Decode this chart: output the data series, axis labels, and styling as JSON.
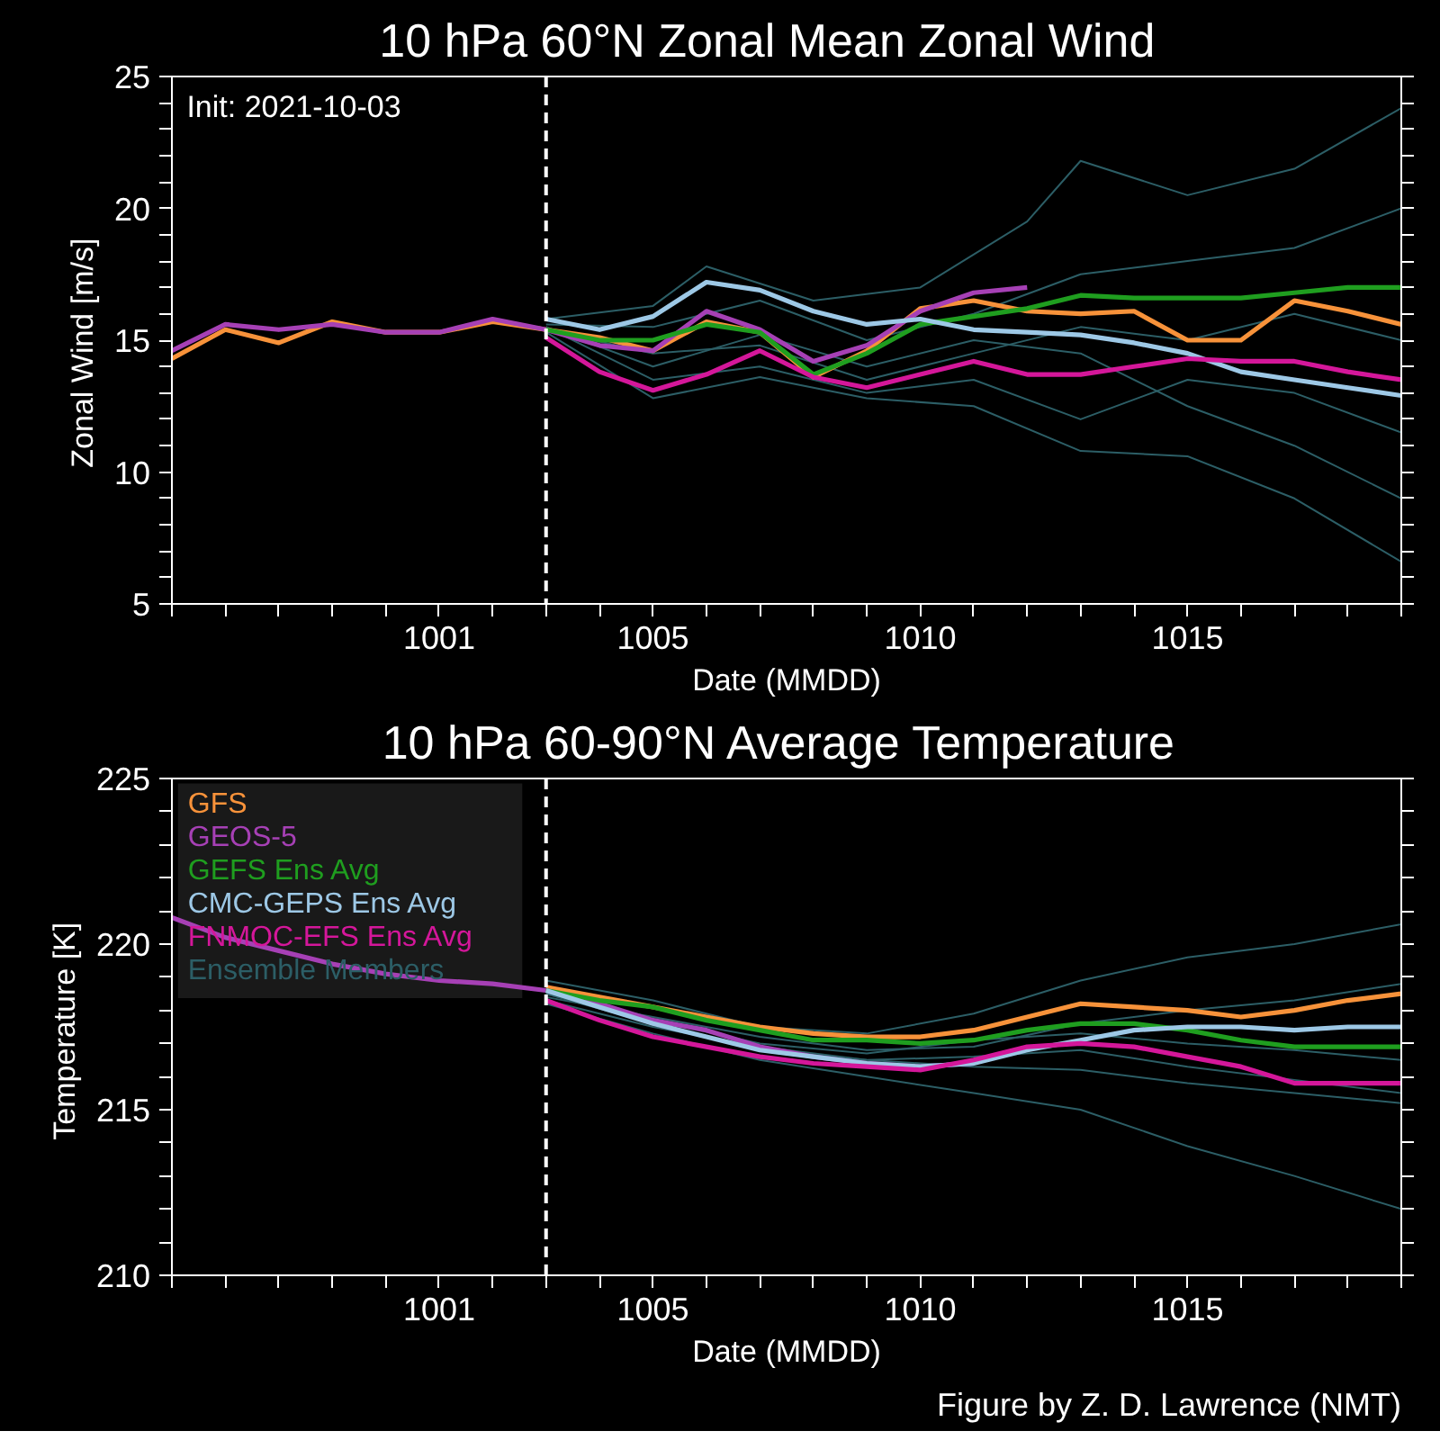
{
  "chart_data": [
    {
      "type": "line",
      "title": "10 hPa  60°N   Zonal Mean Zonal Wind",
      "xlabel": "Date (MMDD)",
      "ylabel": "Zonal  Wind   [m/s]",
      "annotations": [
        "Init: 2021-10-03"
      ],
      "xlim": [
        "2021-09-26",
        "2021-10-19"
      ],
      "xticks": [
        {
          "value": "2021-09-26",
          "label": null
        },
        {
          "value": "2021-09-27",
          "label": null
        },
        {
          "value": "2021-09-28",
          "label": null
        },
        {
          "value": "2021-09-29",
          "label": null
        },
        {
          "value": "2021-09-30",
          "label": null
        },
        {
          "value": "2021-10-01",
          "label": "1001"
        },
        {
          "value": "2021-10-02",
          "label": null
        },
        {
          "value": "2021-10-03",
          "label": null
        },
        {
          "value": "2021-10-04",
          "label": null
        },
        {
          "value": "2021-10-05",
          "label": "1005"
        },
        {
          "value": "2021-10-06",
          "label": null
        },
        {
          "value": "2021-10-07",
          "label": null
        },
        {
          "value": "2021-10-08",
          "label": null
        },
        {
          "value": "2021-10-09",
          "label": null
        },
        {
          "value": "2021-10-10",
          "label": "1010"
        },
        {
          "value": "2021-10-11",
          "label": null
        },
        {
          "value": "2021-10-12",
          "label": null
        },
        {
          "value": "2021-10-13",
          "label": null
        },
        {
          "value": "2021-10-14",
          "label": null
        },
        {
          "value": "2021-10-15",
          "label": "1015"
        },
        {
          "value": "2021-10-16",
          "label": null
        },
        {
          "value": "2021-10-17",
          "label": null
        },
        {
          "value": "2021-10-18",
          "label": null
        },
        {
          "value": "2021-10-19",
          "label": null
        }
      ],
      "ylim": [
        5,
        25
      ],
      "yticks": [
        5,
        {
          "value": 6,
          "label": null
        },
        {
          "value": 7,
          "label": null
        },
        {
          "value": 8,
          "label": null
        },
        {
          "value": 9,
          "label": null
        },
        10,
        {
          "value": 11,
          "label": null
        },
        {
          "value": 12,
          "label": null
        },
        {
          "value": 13,
          "label": null
        },
        {
          "value": 14,
          "label": null
        },
        15,
        {
          "value": 16,
          "label": null
        },
        {
          "value": 17,
          "label": null
        },
        {
          "value": 18,
          "label": null
        },
        {
          "value": 19,
          "label": null
        },
        20,
        {
          "value": 21,
          "label": null
        },
        {
          "value": 22,
          "label": null
        },
        {
          "value": 23,
          "label": null
        },
        {
          "value": 24,
          "label": null
        },
        25
      ],
      "grid": false,
      "ref_lines": [
        {
          "axis": "x",
          "value": "2021-10-03",
          "color": "#ffffff",
          "line_style": "dashed"
        }
      ],
      "series": [
        {
          "color": "#f7923a",
          "x": [
            "2021-09-26",
            "2021-09-27",
            "2021-09-28",
            "2021-09-29",
            "2021-09-30",
            "2021-10-01",
            "2021-10-02",
            "2021-10-03",
            "2021-10-04",
            "2021-10-05",
            "2021-10-06",
            "2021-10-07",
            "2021-10-08",
            "2021-10-09",
            "2021-10-10",
            "2021-10-11",
            "2021-10-12",
            "2021-10-13",
            "2021-10-14",
            "2021-10-15",
            "2021-10-16",
            "2021-10-17",
            "2021-10-18",
            "2021-10-19"
          ],
          "values": [
            14.3,
            15.4,
            14.9,
            15.7,
            15.3,
            15.3,
            15.7,
            15.4,
            15.1,
            14.6,
            15.7,
            15.3,
            13.6,
            14.6,
            16.2,
            16.5,
            16.1,
            16.0,
            16.1,
            15.0,
            15.0,
            16.5,
            16.1,
            15.6
          ]
        },
        {
          "color": "#a640b5",
          "x": [
            "2021-09-26",
            "2021-09-27",
            "2021-09-28",
            "2021-09-29",
            "2021-09-30",
            "2021-10-01",
            "2021-10-02",
            "2021-10-03",
            "2021-10-04",
            "2021-10-05",
            "2021-10-06",
            "2021-10-07",
            "2021-10-08",
            "2021-10-09",
            "2021-10-10",
            "2021-10-11",
            "2021-10-12"
          ],
          "values": [
            14.6,
            15.6,
            15.4,
            15.6,
            15.3,
            15.3,
            15.8,
            15.4,
            14.8,
            14.6,
            16.1,
            15.4,
            14.2,
            14.8,
            16.1,
            16.8,
            17.0
          ]
        },
        {
          "color": "#1f9e1f",
          "x": [
            "2021-10-03",
            "2021-10-04",
            "2021-10-05",
            "2021-10-06",
            "2021-10-07",
            "2021-10-08",
            "2021-10-09",
            "2021-10-10",
            "2021-10-11",
            "2021-10-12",
            "2021-10-13",
            "2021-10-14",
            "2021-10-15",
            "2021-10-16",
            "2021-10-17",
            "2021-10-18",
            "2021-10-19"
          ],
          "values": [
            15.4,
            15.0,
            15.0,
            15.6,
            15.3,
            13.7,
            14.5,
            15.6,
            15.9,
            16.2,
            16.7,
            16.6,
            16.6,
            16.6,
            16.8,
            17.0,
            17.0
          ]
        },
        {
          "color": "#9dc8e6",
          "x": [
            "2021-10-03",
            "2021-10-04",
            "2021-10-05",
            "2021-10-06",
            "2021-10-07",
            "2021-10-08",
            "2021-10-09",
            "2021-10-10",
            "2021-10-11",
            "2021-10-12",
            "2021-10-13",
            "2021-10-14",
            "2021-10-15",
            "2021-10-16",
            "2021-10-17",
            "2021-10-18",
            "2021-10-19"
          ],
          "values": [
            15.8,
            15.4,
            15.9,
            17.2,
            16.9,
            16.1,
            15.6,
            15.8,
            15.4,
            15.3,
            15.2,
            14.9,
            14.5,
            13.8,
            13.5,
            13.2,
            12.9
          ]
        },
        {
          "color": "#d4179a",
          "x": [
            "2021-10-03",
            "2021-10-04",
            "2021-10-05",
            "2021-10-06",
            "2021-10-07",
            "2021-10-08",
            "2021-10-09",
            "2021-10-10",
            "2021-10-11",
            "2021-10-12",
            "2021-10-13",
            "2021-10-14",
            "2021-10-15",
            "2021-10-16",
            "2021-10-17",
            "2021-10-18",
            "2021-10-19"
          ],
          "values": [
            15.1,
            13.8,
            13.1,
            13.7,
            14.6,
            13.6,
            13.2,
            13.7,
            14.2,
            13.7,
            13.7,
            14.0,
            14.3,
            14.2,
            14.2,
            13.8,
            13.5
          ]
        },
        {
          "color": "#2c5e66",
          "x": [
            "2021-10-03",
            "2021-10-05",
            "2021-10-06",
            "2021-10-08",
            "2021-10-10",
            "2021-10-12",
            "2021-10-13",
            "2021-10-15",
            "2021-10-17",
            "2021-10-19"
          ],
          "values": [
            15.8,
            16.3,
            17.8,
            16.5,
            17.0,
            19.5,
            21.8,
            20.5,
            21.5,
            23.8
          ]
        },
        {
          "color": "#2c5e66",
          "x": [
            "2021-10-03",
            "2021-10-05",
            "2021-10-07",
            "2021-10-09",
            "2021-10-11",
            "2021-10-13",
            "2021-10-15",
            "2021-10-17",
            "2021-10-19"
          ],
          "values": [
            15.3,
            12.8,
            13.6,
            12.8,
            12.5,
            10.8,
            10.6,
            9.0,
            6.6
          ]
        },
        {
          "color": "#2c5e66",
          "x": [
            "2021-10-03",
            "2021-10-05",
            "2021-10-07",
            "2021-10-09",
            "2021-10-11",
            "2021-10-13",
            "2021-10-15",
            "2021-10-17",
            "2021-10-19"
          ],
          "values": [
            15.5,
            14.0,
            15.2,
            14.0,
            15.0,
            14.5,
            12.5,
            11.0,
            9.0
          ]
        },
        {
          "color": "#2c5e66",
          "x": [
            "2021-10-03",
            "2021-10-05",
            "2021-10-07",
            "2021-10-09",
            "2021-10-11",
            "2021-10-13",
            "2021-10-15",
            "2021-10-17",
            "2021-10-19"
          ],
          "values": [
            15.6,
            15.5,
            16.5,
            15.0,
            16.0,
            17.5,
            18.0,
            18.5,
            20.0
          ]
        },
        {
          "color": "#2c5e66",
          "x": [
            "2021-10-03",
            "2021-10-05",
            "2021-10-07",
            "2021-10-09",
            "2021-10-11",
            "2021-10-13",
            "2021-10-15",
            "2021-10-17",
            "2021-10-19"
          ],
          "values": [
            15.4,
            14.5,
            14.8,
            13.5,
            14.5,
            15.5,
            15.0,
            16.0,
            15.0
          ]
        },
        {
          "color": "#2c5e66",
          "x": [
            "2021-10-03",
            "2021-10-05",
            "2021-10-07",
            "2021-10-09",
            "2021-10-11",
            "2021-10-13",
            "2021-10-15",
            "2021-10-17",
            "2021-10-19"
          ],
          "values": [
            15.5,
            13.5,
            14.0,
            13.0,
            13.5,
            12.0,
            13.5,
            13.0,
            11.5
          ]
        }
      ]
    },
    {
      "type": "line",
      "title": "10 hPa  60-90°N Average Temperature",
      "xlabel": "Date (MMDD)",
      "ylabel": "Temperature  [K]",
      "annotations": [
        "Figure by Z. D. Lawrence (NMT)"
      ],
      "xlim": [
        "2021-09-26",
        "2021-10-19"
      ],
      "xticks": [
        {
          "value": "2021-09-26",
          "label": null
        },
        {
          "value": "2021-09-27",
          "label": null
        },
        {
          "value": "2021-09-28",
          "label": null
        },
        {
          "value": "2021-09-29",
          "label": null
        },
        {
          "value": "2021-09-30",
          "label": null
        },
        {
          "value": "2021-10-01",
          "label": "1001"
        },
        {
          "value": "2021-10-02",
          "label": null
        },
        {
          "value": "2021-10-03",
          "label": null
        },
        {
          "value": "2021-10-04",
          "label": null
        },
        {
          "value": "2021-10-05",
          "label": "1005"
        },
        {
          "value": "2021-10-06",
          "label": null
        },
        {
          "value": "2021-10-07",
          "label": null
        },
        {
          "value": "2021-10-08",
          "label": null
        },
        {
          "value": "2021-10-09",
          "label": null
        },
        {
          "value": "2021-10-10",
          "label": "1010"
        },
        {
          "value": "2021-10-11",
          "label": null
        },
        {
          "value": "2021-10-12",
          "label": null
        },
        {
          "value": "2021-10-13",
          "label": null
        },
        {
          "value": "2021-10-14",
          "label": null
        },
        {
          "value": "2021-10-15",
          "label": "1015"
        },
        {
          "value": "2021-10-16",
          "label": null
        },
        {
          "value": "2021-10-17",
          "label": null
        },
        {
          "value": "2021-10-18",
          "label": null
        },
        {
          "value": "2021-10-19",
          "label": null
        }
      ],
      "ylim": [
        210,
        225
      ],
      "yticks": [
        210,
        {
          "value": 211,
          "label": null
        },
        {
          "value": 212,
          "label": null
        },
        {
          "value": 213,
          "label": null
        },
        {
          "value": 214,
          "label": null
        },
        215,
        {
          "value": 216,
          "label": null
        },
        {
          "value": 217,
          "label": null
        },
        {
          "value": 218,
          "label": null
        },
        {
          "value": 219,
          "label": null
        },
        220,
        {
          "value": 221,
          "label": null
        },
        {
          "value": 222,
          "label": null
        },
        {
          "value": 223,
          "label": null
        },
        {
          "value": 224,
          "label": null
        },
        225
      ],
      "grid": false,
      "ref_lines": [
        {
          "axis": "x",
          "value": "2021-10-03",
          "color": "#ffffff",
          "line_style": "dashed"
        }
      ],
      "series": [
        {
          "name": "GFS",
          "color": "#f7923a",
          "x": [
            "2021-10-03",
            "2021-10-04",
            "2021-10-05",
            "2021-10-06",
            "2021-10-07",
            "2021-10-08",
            "2021-10-09",
            "2021-10-10",
            "2021-10-11",
            "2021-10-12",
            "2021-10-13",
            "2021-10-14",
            "2021-10-15",
            "2021-10-16",
            "2021-10-17",
            "2021-10-18",
            "2021-10-19"
          ],
          "values": [
            218.7,
            218.4,
            218.1,
            217.8,
            217.5,
            217.3,
            217.2,
            217.2,
            217.4,
            217.8,
            218.2,
            218.1,
            218.0,
            217.8,
            218.0,
            218.3,
            218.5
          ]
        },
        {
          "name": "GEOS-5",
          "color": "#a640b5",
          "x": [
            "2021-09-26",
            "2021-09-27",
            "2021-09-28",
            "2021-09-29",
            "2021-09-30",
            "2021-10-01",
            "2021-10-02",
            "2021-10-03",
            "2021-10-04",
            "2021-10-05",
            "2021-10-06",
            "2021-10-07",
            "2021-10-08",
            "2021-10-09",
            "2021-10-10",
            "2021-10-11"
          ],
          "values": [
            220.8,
            220.2,
            219.8,
            219.4,
            219.1,
            218.9,
            218.8,
            218.6,
            218.2,
            217.7,
            217.4,
            216.9,
            216.6,
            216.4,
            216.3,
            216.4
          ]
        },
        {
          "name": "GEFS Ens Avg",
          "color": "#1f9e1f",
          "x": [
            "2021-10-03",
            "2021-10-04",
            "2021-10-05",
            "2021-10-06",
            "2021-10-07",
            "2021-10-08",
            "2021-10-09",
            "2021-10-10",
            "2021-10-11",
            "2021-10-12",
            "2021-10-13",
            "2021-10-14",
            "2021-10-15",
            "2021-10-16",
            "2021-10-17",
            "2021-10-18",
            "2021-10-19"
          ],
          "values": [
            218.6,
            218.3,
            218.1,
            217.7,
            217.4,
            217.1,
            217.1,
            217.0,
            217.1,
            217.4,
            217.6,
            217.6,
            217.4,
            217.1,
            216.9,
            216.9,
            216.9
          ]
        },
        {
          "name": "CMC-GEPS Ens Avg",
          "color": "#9dc8e6",
          "x": [
            "2021-10-03",
            "2021-10-04",
            "2021-10-05",
            "2021-10-06",
            "2021-10-07",
            "2021-10-08",
            "2021-10-09",
            "2021-10-10",
            "2021-10-11",
            "2021-10-12",
            "2021-10-13",
            "2021-10-14",
            "2021-10-15",
            "2021-10-16",
            "2021-10-17",
            "2021-10-18",
            "2021-10-19"
          ],
          "values": [
            218.6,
            218.1,
            217.6,
            217.2,
            216.8,
            216.6,
            216.4,
            216.3,
            216.4,
            216.8,
            217.1,
            217.4,
            217.5,
            217.5,
            217.4,
            217.5,
            217.5
          ]
        },
        {
          "name": "FNMOC-EFS Ens Avg",
          "color": "#d4179a",
          "x": [
            "2021-10-03",
            "2021-10-04",
            "2021-10-05",
            "2021-10-06",
            "2021-10-07",
            "2021-10-08",
            "2021-10-09",
            "2021-10-10",
            "2021-10-11",
            "2021-10-12",
            "2021-10-13",
            "2021-10-14",
            "2021-10-15",
            "2021-10-16",
            "2021-10-17",
            "2021-10-18",
            "2021-10-19"
          ],
          "values": [
            218.3,
            217.7,
            217.2,
            216.9,
            216.6,
            216.4,
            216.3,
            216.2,
            216.5,
            216.9,
            217.0,
            216.9,
            216.6,
            216.3,
            215.8,
            215.8,
            215.8
          ]
        },
        {
          "name": "Ensemble Members",
          "color": "#2c5e66",
          "x": [
            "2021-10-03",
            "2021-10-05",
            "2021-10-07",
            "2021-10-09",
            "2021-10-11",
            "2021-10-13",
            "2021-10-15",
            "2021-10-17",
            "2021-10-19"
          ],
          "values": [
            218.9,
            218.3,
            217.5,
            217.3,
            217.9,
            218.9,
            219.6,
            220.0,
            220.6
          ]
        },
        {
          "color": "#2c5e66",
          "x": [
            "2021-10-03",
            "2021-10-05",
            "2021-10-07",
            "2021-10-09",
            "2021-10-11",
            "2021-10-13",
            "2021-10-15",
            "2021-10-17",
            "2021-10-19"
          ],
          "values": [
            218.2,
            217.3,
            216.5,
            216.0,
            215.5,
            215.0,
            213.9,
            213.0,
            212.0
          ]
        },
        {
          "color": "#2c5e66",
          "x": [
            "2021-10-03",
            "2021-10-05",
            "2021-10-07",
            "2021-10-09",
            "2021-10-11",
            "2021-10-13",
            "2021-10-15",
            "2021-10-17",
            "2021-10-19"
          ],
          "values": [
            218.5,
            217.6,
            216.8,
            216.5,
            216.6,
            216.8,
            216.3,
            215.9,
            215.5
          ]
        },
        {
          "color": "#2c5e66",
          "x": [
            "2021-10-03",
            "2021-10-05",
            "2021-10-07",
            "2021-10-09",
            "2021-10-11",
            "2021-10-13",
            "2021-10-15",
            "2021-10-17",
            "2021-10-19"
          ],
          "values": [
            218.4,
            217.8,
            217.2,
            216.8,
            216.9,
            217.6,
            218.0,
            218.3,
            218.8
          ]
        },
        {
          "color": "#2c5e66",
          "x": [
            "2021-10-03",
            "2021-10-05",
            "2021-10-07",
            "2021-10-09",
            "2021-10-11",
            "2021-10-13",
            "2021-10-15",
            "2021-10-17",
            "2021-10-19"
          ],
          "values": [
            218.3,
            217.5,
            216.9,
            216.5,
            216.3,
            216.2,
            215.8,
            215.5,
            215.2
          ]
        },
        {
          "color": "#2c5e66",
          "x": [
            "2021-10-03",
            "2021-10-05",
            "2021-10-07",
            "2021-10-09",
            "2021-10-11",
            "2021-10-13",
            "2021-10-15",
            "2021-10-17",
            "2021-10-19"
          ],
          "values": [
            218.5,
            217.7,
            217.0,
            216.7,
            217.1,
            217.3,
            217.0,
            216.8,
            216.5
          ]
        }
      ]
    }
  ]
}
